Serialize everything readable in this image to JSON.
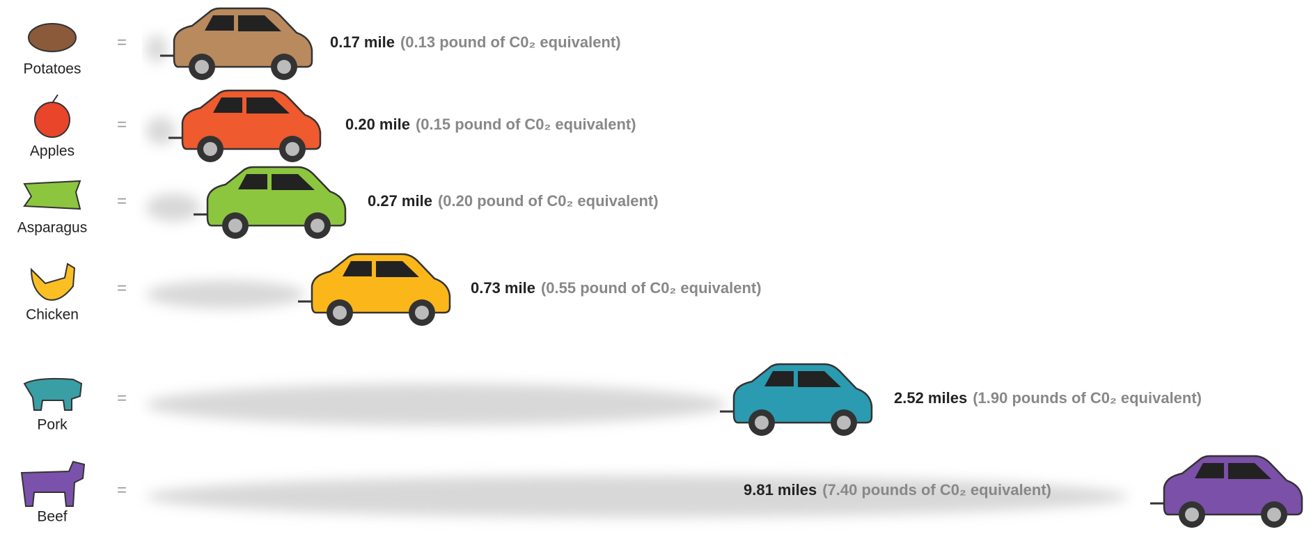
{
  "rows": [
    {
      "food": "Potatoes",
      "equals": "=",
      "distance": "0.17 mile",
      "emissions": "(0.13 pound of C0₂ equivalent)"
    },
    {
      "food": "Apples",
      "equals": "=",
      "distance": "0.20 mile",
      "emissions": "(0.15 pound of C0₂ equivalent)"
    },
    {
      "food": "Asparagus",
      "equals": "=",
      "distance": "0.27 mile",
      "emissions": "(0.20 pound of C0₂ equivalent)"
    },
    {
      "food": "Chicken",
      "equals": "=",
      "distance": "0.73 mile",
      "emissions": "(0.55 pound of C0₂ equivalent)"
    },
    {
      "food": "Pork",
      "equals": "=",
      "distance": "2.52 miles",
      "emissions": "(1.90 pounds of C0₂ equivalent)"
    },
    {
      "food": "Beef",
      "equals": "=",
      "distance": "9.81 miles",
      "emissions": "(7.40 pounds of C0₂ equivalent)"
    }
  ]
}
